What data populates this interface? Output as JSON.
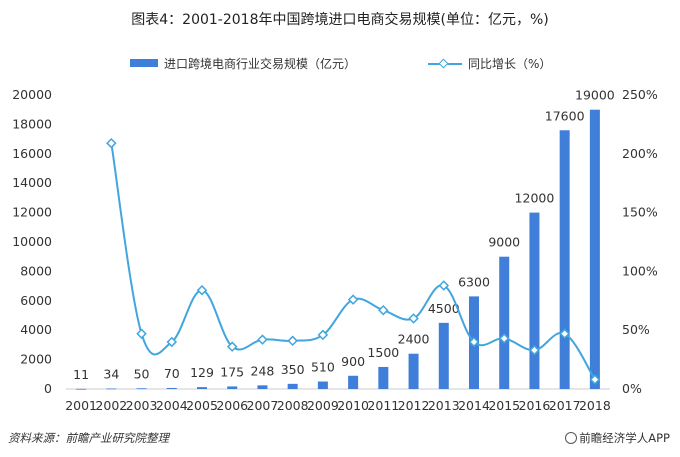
{
  "title": "图表4：2001-2018年中国跨境进口电商交易规模(单位：亿元，%)",
  "footer": {
    "source": "资料来源：前瞻产业研究院整理",
    "brand": "前瞻经济学人APP"
  },
  "colors": {
    "bar": "#3f7fd9",
    "line": "#41a6de",
    "axis": "#cccccc"
  },
  "chart_data": {
    "type": "bar",
    "title": "图表4：2001-2018年中国跨境进口电商交易规模(单位：亿元，%)",
    "categories": [
      "2001",
      "2002",
      "2003",
      "2004",
      "2005",
      "2006",
      "2007",
      "2008",
      "2009",
      "2010",
      "2011",
      "2012",
      "2013",
      "2014",
      "2015",
      "2016",
      "2017",
      "2018"
    ],
    "series": [
      {
        "name": "进口跨境电商行业交易规模（亿元）",
        "type": "bar",
        "axis": "left",
        "values": [
          11,
          34,
          50,
          70,
          129,
          175,
          248,
          350,
          510,
          900,
          1500,
          2400,
          4500,
          6300,
          9000,
          12000,
          17600,
          19000
        ],
        "labels": [
          "11",
          "34",
          "50",
          "70",
          "129",
          "175",
          "248",
          "350",
          "510",
          "900",
          "1500",
          "2400",
          "4500",
          "6300",
          "9000",
          "12000",
          "17600",
          "19000"
        ]
      },
      {
        "name": "同比增长（%）",
        "type": "line",
        "axis": "right",
        "values": [
          null,
          209,
          47,
          40,
          84,
          36,
          42,
          41,
          46,
          76,
          67,
          60,
          88,
          40,
          43,
          33,
          47,
          8
        ]
      }
    ],
    "y_left": {
      "min": 0,
      "max": 20000,
      "ticks": [
        "0",
        "2000",
        "4000",
        "6000",
        "8000",
        "10000",
        "12000",
        "14000",
        "16000",
        "18000",
        "20000"
      ]
    },
    "y_right": {
      "min": 0,
      "max": 250,
      "ticks": [
        "0%",
        "50%",
        "100%",
        "150%",
        "200%",
        "250%"
      ]
    },
    "legend": "top-center"
  }
}
